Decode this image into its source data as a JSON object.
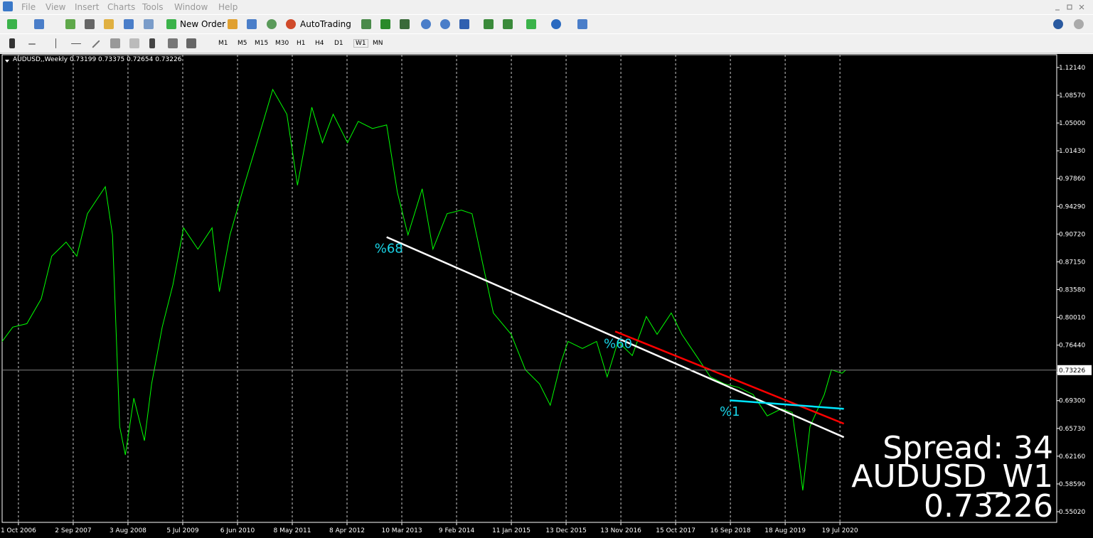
{
  "menu": [
    "File",
    "View",
    "Insert",
    "Charts",
    "Tools",
    "Window",
    "Help"
  ],
  "toolbar": {
    "new_order": "New Order",
    "autotrading": "AutoTrading"
  },
  "timeframes": [
    "M1",
    "M5",
    "M15",
    "M30",
    "H1",
    "H4",
    "D1",
    "W1",
    "MN"
  ],
  "overlay": {
    "spread": "Spread: 34",
    "symbol": "AUDUSD_W1"
  },
  "chart_data": {
    "type": "line",
    "title": "AUDUSD,,Weekly  0.73199 0.73375 0.72654 0.73226",
    "x": [
      "2006-06-23",
      "2006-08-27",
      "2006-11-22",
      "2007-02-18",
      "2007-04-23",
      "2007-07-20",
      "2007-09-24",
      "2007-11-28",
      "2008-03-17",
      "2008-04-30",
      "2008-06-13",
      "2008-07-18",
      "2008-09-08",
      "2008-11-12",
      "2008-12-26",
      "2009-03-01",
      "2009-05-06",
      "2009-07-10",
      "2009-10-06",
      "2010-01-01",
      "2010-02-15",
      "2010-04-21",
      "2010-07-17",
      "2010-09-21",
      "2011-01-08",
      "2011-04-05",
      "2011-06-09",
      "2011-09-05",
      "2011-11-09",
      "2012-01-14",
      "2012-04-11",
      "2012-06-16",
      "2012-09-11",
      "2012-12-07",
      "2013-02-11",
      "2013-04-17",
      "2013-07-13",
      "2013-09-17",
      "2013-12-13",
      "2014-03-10",
      "2014-05-15",
      "2014-07-19",
      "2014-09-23",
      "2015-01-10",
      "2015-04-07",
      "2015-07-03",
      "2015-09-07",
      "2015-11-11",
      "2015-12-25",
      "2016-03-22",
      "2016-06-17",
      "2016-08-21",
      "2016-10-26",
      "2017-01-22",
      "2017-04-18",
      "2017-06-23",
      "2017-09-18",
      "2017-11-22",
      "2018-02-18",
      "2018-05-16",
      "2018-08-11",
      "2018-11-06",
      "2019-02-02",
      "2019-04-30",
      "2019-07-26",
      "2019-09-30",
      "2019-11-12",
      "2019-12-04",
      "2020-01-17",
      "2020-04-14",
      "2020-05-28",
      "2020-08-01",
      "2020-08-23"
    ],
    "series": [
      {
        "name": "AUDUSD",
        "color": "#00ff00",
        "values": [
          0.7692,
          0.7875,
          0.792,
          0.824,
          0.8787,
          0.8969,
          0.8787,
          0.9334,
          0.9681,
          0.9061,
          0.6597,
          0.6232,
          0.6962,
          0.6415,
          0.7145,
          0.7875,
          0.8422,
          0.9152,
          0.8878,
          0.9152,
          0.8331,
          0.9061,
          0.9699,
          1.0156,
          1.0931,
          1.0612,
          0.9699,
          1.0703,
          1.0247,
          1.0612,
          1.0247,
          1.0521,
          1.0429,
          1.0475,
          0.9608,
          0.9061,
          0.9654,
          0.8878,
          0.9334,
          0.938,
          0.9334,
          0.8696,
          0.8057,
          0.7783,
          0.7327,
          0.7145,
          0.6871,
          0.7418,
          0.7692,
          0.7601,
          0.7692,
          0.7236,
          0.7692,
          0.751,
          0.8012,
          0.7783,
          0.8057,
          0.7783,
          0.751,
          0.7236,
          0.7145,
          0.7099,
          0.7008,
          0.6734,
          0.6825,
          0.678,
          0.6141,
          0.5776,
          0.6597,
          0.7008,
          0.7327,
          0.7282,
          0.73226
        ]
      }
    ],
    "last_price": 0.73226,
    "trendlines": [
      {
        "color": "#ffffff",
        "x": [
          "2012-12-07",
          "2020-08-12"
        ],
        "values": [
          0.9033,
          0.646
        ]
      },
      {
        "color": "#ff0000",
        "x": [
          "2016-10-09",
          "2020-08-12"
        ],
        "values": [
          0.782,
          0.6634
        ]
      },
      {
        "color": "#00e5ff",
        "x": [
          "2018-09-12",
          "2020-08-12"
        ],
        "values": [
          0.6935,
          0.6825
        ]
      }
    ],
    "annotations": [
      {
        "text": "%68",
        "x": "2012-09-24",
        "y": 0.8896,
        "color": "#19d3e6"
      },
      {
        "text": "%60",
        "x": "2016-07-31",
        "y": 0.7674,
        "color": "#19d3e6"
      },
      {
        "text": "%1",
        "x": "2018-07-12",
        "y": 0.6798,
        "color": "#19d3e6"
      }
    ],
    "xlim": [
      "2006-06-23",
      "2024-03-10"
    ],
    "xticks": [
      {
        "value": "2006-10-01",
        "label": "1 Oct 2006"
      },
      {
        "value": "2007-09-02",
        "label": "2 Sep 2007"
      },
      {
        "value": "2008-08-03",
        "label": "3 Aug 2008"
      },
      {
        "value": "2009-07-05",
        "label": "5 Jul 2009"
      },
      {
        "value": "2010-06-06",
        "label": "6 Jun 2010"
      },
      {
        "value": "2011-05-08",
        "label": "8 May 2011"
      },
      {
        "value": "2012-04-08",
        "label": "8 Apr 2012"
      },
      {
        "value": "2013-03-10",
        "label": "10 Mar 2013"
      },
      {
        "value": "2014-02-09",
        "label": "9 Feb 2014"
      },
      {
        "value": "2015-01-11",
        "label": "11 Jan 2015"
      },
      {
        "value": "2015-12-13",
        "label": "13 Dec 2015"
      },
      {
        "value": "2016-11-13",
        "label": "13 Nov 2016"
      },
      {
        "value": "2017-10-15",
        "label": "15 Oct 2017"
      },
      {
        "value": "2018-09-16",
        "label": "16 Sep 2018"
      },
      {
        "value": "2019-08-18",
        "label": "18 Aug 2019"
      },
      {
        "value": "2020-07-19",
        "label": "19 Jul 2020"
      }
    ],
    "ylim": [
      0.5365,
      1.1378
    ],
    "yticks": [
      {
        "value": 1.1214,
        "label": "1.12140"
      },
      {
        "value": 1.0857,
        "label": "1.08570"
      },
      {
        "value": 1.05,
        "label": "1.05000"
      },
      {
        "value": 1.0143,
        "label": "1.01430"
      },
      {
        "value": 0.9786,
        "label": "0.97860"
      },
      {
        "value": 0.9429,
        "label": "0.94290"
      },
      {
        "value": 0.9072,
        "label": "0.90720"
      },
      {
        "value": 0.8715,
        "label": "0.87150"
      },
      {
        "value": 0.8358,
        "label": "0.83580"
      },
      {
        "value": 0.8001,
        "label": "0.80010"
      },
      {
        "value": 0.7644,
        "label": "0.76440"
      },
      {
        "value": 0.7287,
        "label": "0.72870"
      },
      {
        "value": 0.693,
        "label": "0.69300"
      },
      {
        "value": 0.6573,
        "label": "0.65730"
      },
      {
        "value": 0.6216,
        "label": "0.62160"
      },
      {
        "value": 0.5859,
        "label": "0.58590"
      },
      {
        "value": 0.5502,
        "label": "0.55020"
      }
    ],
    "grid": "vertical"
  }
}
